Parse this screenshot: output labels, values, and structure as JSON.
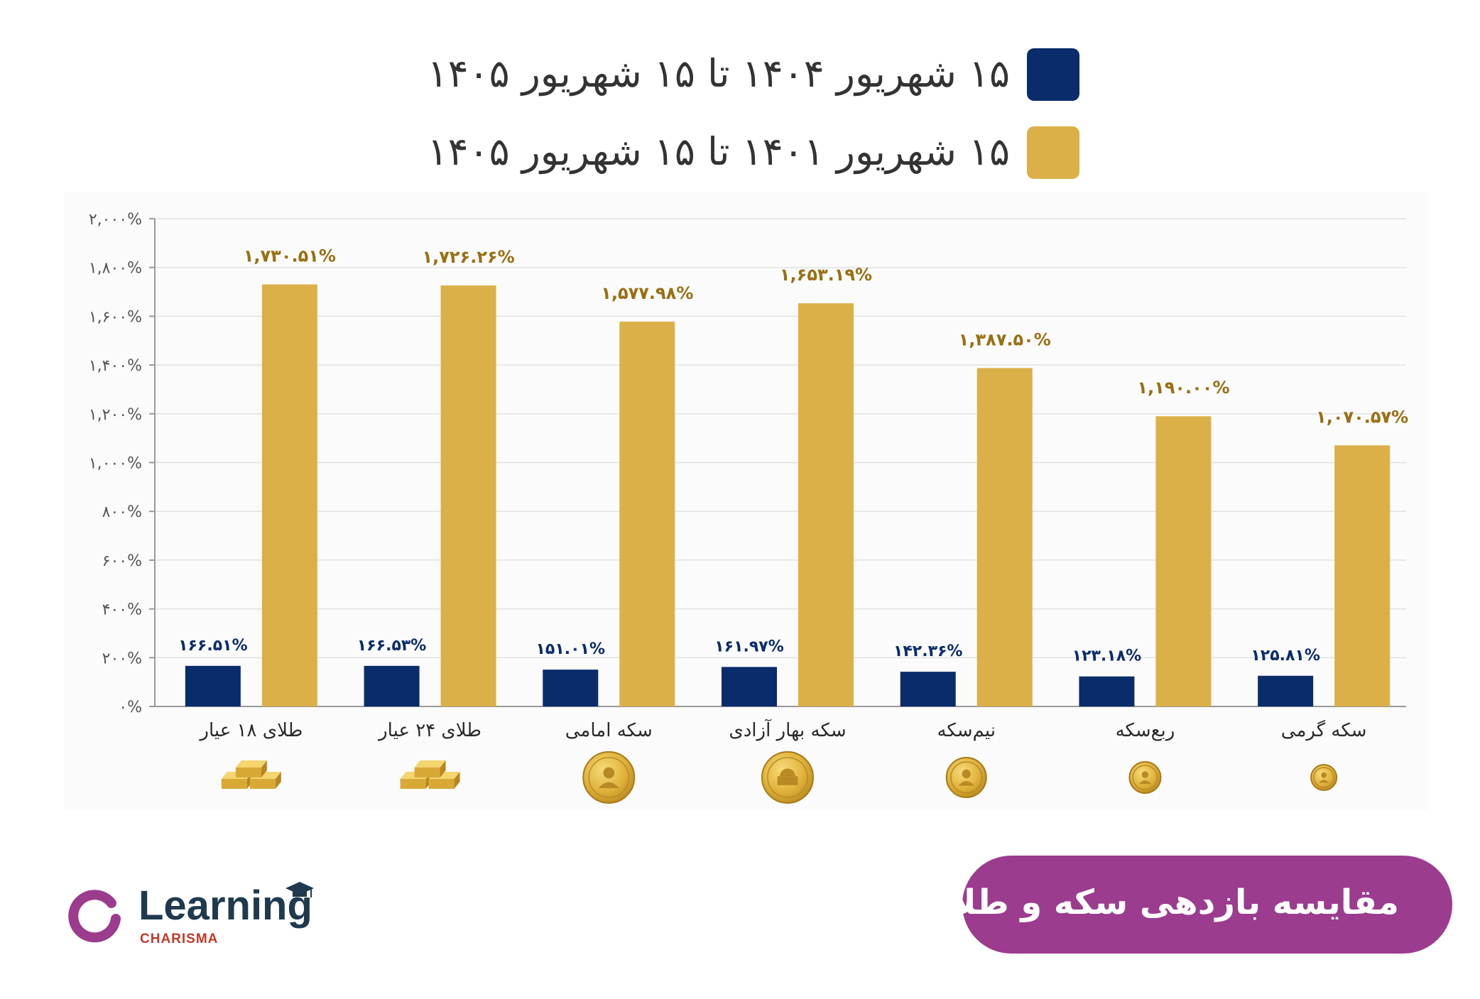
{
  "legend": [
    {
      "label": "۱۵ شهریور ۱۴۰۴ تا ۱۵ شهریور ۱۴۰۵",
      "color": "#0a2c6b"
    },
    {
      "label": "۱۵ شهریور ۱۴۰۱ تا ۱۵ شهریور ۱۴۰۵",
      "color": "#dcb048"
    }
  ],
  "chart_data": {
    "type": "bar",
    "categories": [
      "طلای ۱۸ عیار",
      "طلای ۲۴ عیار",
      "سکه امامی",
      "سکه بهار آزادی",
      "نیم‌سکه",
      "ربع‌سکه",
      "سکه گرمی"
    ],
    "category_icons": [
      "gold-bars-icon",
      "gold-bars-icon",
      "coin-portrait-icon",
      "coin-building-icon",
      "coin-portrait-icon",
      "coin-portrait-icon",
      "coin-portrait-icon"
    ],
    "series": [
      {
        "name": "۱۵ شهریور ۱۴۰۴ تا ۱۵ شهریور ۱۴۰۵",
        "color": "#0a2c6b",
        "values": [
          166.51,
          166.53,
          151.01,
          161.97,
          142.36,
          123.18,
          125.81
        ],
        "labels": [
          "۱۶۶.۵۱%",
          "۱۶۶.۵۳%",
          "۱۵۱.۰۱%",
          "۱۶۱.۹۷%",
          "۱۴۲.۳۶%",
          "۱۲۳.۱۸%",
          "۱۲۵.۸۱%"
        ]
      },
      {
        "name": "۱۵ شهریور ۱۴۰۱ تا ۱۵ شهریور ۱۴۰۵",
        "color": "#dcb048",
        "values": [
          1730.51,
          1726.26,
          1577.98,
          1653.19,
          1387.5,
          1190.0,
          1070.57
        ],
        "labels": [
          "۱,۷۳۰.۵۱%",
          "۱,۷۲۶.۲۶%",
          "۱,۵۷۷.۹۸%",
          "۱,۶۵۳.۱۹%",
          "۱,۳۸۷.۵۰%",
          "۱,۱۹۰.۰۰%",
          "۱,۰۷۰.۵۷%"
        ]
      }
    ],
    "yticks": [
      0,
      200,
      400,
      600,
      800,
      1000,
      1200,
      1400,
      1600,
      1800,
      2000
    ],
    "ytick_labels": [
      "۰%",
      "۲۰۰%",
      "۴۰۰%",
      "۶۰۰%",
      "۸۰۰%",
      "۱,۰۰۰%",
      "۱,۲۰۰%",
      "۱,۴۰۰%",
      "۱,۶۰۰%",
      "۱,۸۰۰%",
      "۲,۰۰۰%"
    ],
    "ylim": [
      0,
      2000
    ],
    "grid": true,
    "label_colors": {
      "series_0": "#0a2c6b",
      "series_1": "#9a6f12"
    }
  },
  "title": "مقایسه بازدهی سکه و طلا",
  "title_color": "#9b3c8f",
  "logo": {
    "brand": "Learning",
    "sub": "CHARISMA",
    "ring_color": "#9b3c8f",
    "icon": "graduation-cap-icon"
  }
}
